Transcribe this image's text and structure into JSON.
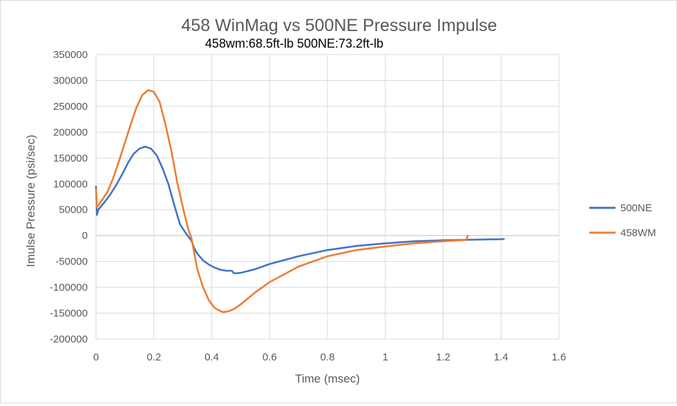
{
  "chart_data": {
    "type": "line",
    "title": "458 WinMag vs 500NE Pressure  Impulse",
    "subtitle": "458wm:68.5ft-lb   500NE:73.2ft-lb",
    "xlabel": "Time (msec)",
    "ylabel": "Imulse Pressure (psi/sec)",
    "xlim": [
      0,
      1.6
    ],
    "ylim": [
      -200000,
      350000
    ],
    "x_ticks": [
      0,
      0.2,
      0.4,
      0.6,
      0.8,
      1,
      1.2,
      1.4,
      1.6
    ],
    "x_tick_labels": [
      "0",
      "0.2",
      "0.4",
      "0.6",
      "0.8",
      "1",
      "1.2",
      "1.4",
      "1.6"
    ],
    "y_ticks": [
      -200000,
      -150000,
      -100000,
      -50000,
      0,
      50000,
      100000,
      150000,
      200000,
      250000,
      300000,
      350000
    ],
    "y_tick_labels": [
      "-200000",
      "-150000",
      "-100000",
      "-50000",
      "0",
      "50000",
      "100000",
      "150000",
      "200000",
      "250000",
      "300000",
      "350000"
    ],
    "grid": true,
    "legend_position": "right",
    "series": [
      {
        "name": "500NE",
        "color": "#4472c4",
        "x": [
          0,
          0.003,
          0.008,
          0.015,
          0.03,
          0.05,
          0.07,
          0.09,
          0.11,
          0.13,
          0.15,
          0.17,
          0.19,
          0.21,
          0.23,
          0.25,
          0.27,
          0.29,
          0.31,
          0.33,
          0.34,
          0.35,
          0.37,
          0.39,
          0.41,
          0.43,
          0.45,
          0.47,
          0.475,
          0.48,
          0.5,
          0.55,
          0.6,
          0.7,
          0.8,
          0.9,
          1.0,
          1.1,
          1.2,
          1.3,
          1.4,
          1.41
        ],
        "y": [
          95000,
          40000,
          50000,
          55000,
          65000,
          80000,
          98000,
          118000,
          140000,
          158000,
          168000,
          172000,
          168000,
          155000,
          130000,
          100000,
          60000,
          22000,
          5000,
          -10000,
          -25000,
          -35000,
          -48000,
          -56000,
          -62000,
          -66000,
          -68000,
          -68000,
          -72000,
          -73000,
          -72000,
          -65000,
          -55000,
          -40000,
          -28000,
          -20000,
          -15000,
          -11000,
          -9000,
          -8000,
          -7000,
          -6500
        ]
      },
      {
        "name": "458WM",
        "color": "#ed7d31",
        "x": [
          0,
          0.003,
          0.01,
          0.02,
          0.04,
          0.06,
          0.08,
          0.1,
          0.12,
          0.14,
          0.16,
          0.18,
          0.2,
          0.22,
          0.24,
          0.26,
          0.28,
          0.3,
          0.32,
          0.33,
          0.34,
          0.35,
          0.37,
          0.39,
          0.41,
          0.43,
          0.44,
          0.46,
          0.48,
          0.5,
          0.55,
          0.6,
          0.7,
          0.8,
          0.9,
          1.0,
          1.1,
          1.2,
          1.28,
          1.285
        ],
        "y": [
          90000,
          55000,
          60000,
          68000,
          85000,
          112000,
          145000,
          180000,
          215000,
          248000,
          272000,
          281000,
          278000,
          258000,
          215000,
          165000,
          105000,
          55000,
          10000,
          -5000,
          -35000,
          -65000,
          -100000,
          -125000,
          -140000,
          -146000,
          -148000,
          -146000,
          -141000,
          -133000,
          -110000,
          -90000,
          -60000,
          -40000,
          -28000,
          -21000,
          -15000,
          -11000,
          -8500,
          0
        ]
      }
    ]
  }
}
